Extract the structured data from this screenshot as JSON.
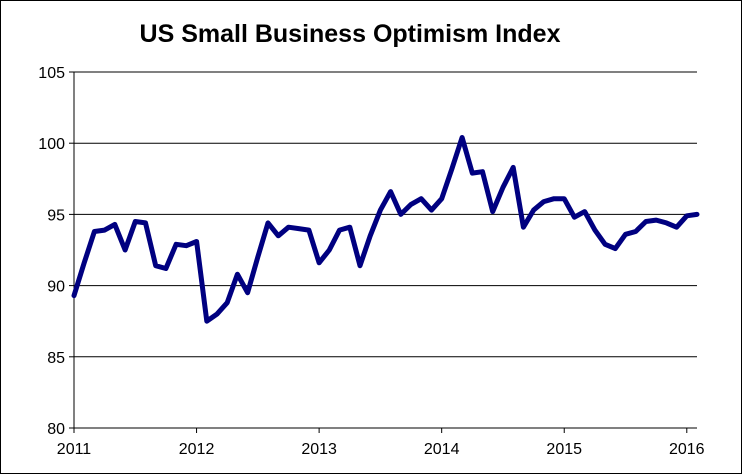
{
  "chart_data": {
    "type": "line",
    "title": "US Small Business Optimism  Index",
    "xlabel": "",
    "ylabel": "",
    "ylim": [
      80,
      105
    ],
    "xlim": [
      2011.0,
      2016.0833
    ],
    "grid": true,
    "line_color": "#000080",
    "y_ticks": [
      "80",
      "85",
      "90",
      "95",
      "100",
      "105"
    ],
    "x_ticks": [
      "2011",
      "2012",
      "2013",
      "2014",
      "2015",
      "2016"
    ],
    "series": [
      {
        "name": "US Small Business Optimism Index",
        "x": [
          2011.0,
          2011.0833,
          2011.1667,
          2011.25,
          2011.3333,
          2011.4167,
          2011.5,
          2011.5833,
          2011.6667,
          2011.75,
          2011.8333,
          2011.9167,
          2012.0,
          2012.0833,
          2012.1667,
          2012.25,
          2012.3333,
          2012.4167,
          2012.5,
          2012.5833,
          2012.6667,
          2012.75,
          2012.8333,
          2012.9167,
          2013.0,
          2013.0833,
          2013.1667,
          2013.25,
          2013.3333,
          2013.4167,
          2013.5,
          2013.5833,
          2013.6667,
          2013.75,
          2013.8333,
          2013.9167,
          2014.0,
          2014.0833,
          2014.1667,
          2014.25,
          2014.3333,
          2014.4167,
          2014.5,
          2014.5833,
          2014.6667,
          2014.75,
          2014.8333,
          2014.9167,
          2015.0,
          2015.0833,
          2015.1667,
          2015.25,
          2015.3333,
          2015.4167,
          2015.5,
          2015.5833,
          2015.6667,
          2015.75,
          2015.8333,
          2015.9167,
          2016.0,
          2016.0833
        ],
        "values": [
          89.3,
          91.6,
          93.8,
          93.9,
          94.3,
          92.5,
          94.5,
          94.4,
          91.4,
          91.2,
          92.9,
          92.8,
          93.1,
          87.5,
          88.0,
          88.8,
          90.8,
          89.5,
          92.0,
          94.4,
          93.5,
          94.1,
          94.0,
          93.9,
          91.6,
          92.5,
          93.9,
          94.1,
          91.4,
          93.5,
          95.3,
          96.6,
          95.0,
          95.7,
          96.1,
          95.3,
          96.1,
          98.2,
          100.4,
          97.9,
          98.0,
          95.2,
          96.9,
          98.3,
          94.1,
          95.3,
          95.9,
          96.1,
          96.1,
          94.8,
          95.2,
          93.9,
          92.9,
          92.6,
          93.6,
          93.8,
          94.5,
          94.6,
          94.4,
          94.1,
          94.9,
          95.0
        ]
      }
    ]
  }
}
